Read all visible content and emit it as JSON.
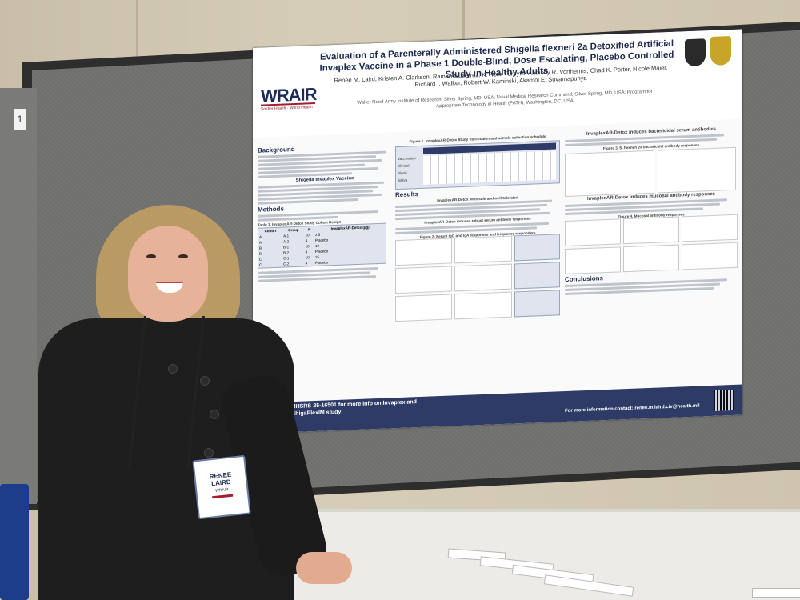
{
  "poster": {
    "title": "Evaluation of a Parenterally Administered Shigella flexneri 2a Detoxified Artificial Invaplex Vaccine in a Phase 1 Double-Blind, Dose Escalating, Placebo Controlled Study in Healthy Adults",
    "authors": "Renee M. Laird, Kristen A. Clarkson, Ramiro Gutierrez, K. Ross Turbyfill, Anthony R. Vortherms, Chad K. Porter, Nicole Maier, Richard I. Walker, Robert W. Kaminski, Akamol E. Suvarnapunya",
    "affiliation": "Walter Reed Army Institute of Research, Silver Spring, MD, USA; Naval Medical Research Command, Silver Spring, MD, USA; Program for Appropriate Technology in Health (PATH), Washington, DC, USA",
    "logo": "WRAIR",
    "logo_tagline": "Soldier Health · World Health",
    "sections": {
      "background": "Background",
      "invaplex_vaccine": "Shigella Invaplex Vaccine",
      "methods": "Methods",
      "table1": "Table 1. InvaplexAR-Detox Study Cohort Design",
      "figure1": "Figure 1. InvaplexAR-Detox Study Vaccination and sample collection schedule",
      "results": "Results",
      "safe": "InvaplexAR-Detox IM is safe and well-tolerated",
      "robust": "InvaplexAR-Detox induces robust serum antibody responses",
      "figure2": "Figure 2. Serum IgG and IgA responses and frequency responders",
      "bactericidal": "InvaplexAR-Detox induces bactericidal serum antibodies",
      "figure3": "Figure 3. S. flexneri 2a bactericidal antibody responses",
      "mucosal": "InvaplexAR-Detox induces mucosal antibody responses",
      "figure4": "Figure 4. Mucosal antibody responses",
      "conclusions": "Conclusions"
    },
    "schedule_rows": [
      "Vaccination",
      "Clinical",
      "Blood",
      "Saliva"
    ],
    "table_headers": [
      "Cohort",
      "Group",
      "N",
      "InvaplexAR-Detox (µg)"
    ],
    "table_rows": [
      [
        "A",
        "A-1",
        "10",
        "2.5"
      ],
      [
        "A",
        "A-2",
        "4",
        "Placebo"
      ],
      [
        "B",
        "B-1",
        "10",
        "10"
      ],
      [
        "B",
        "B-2",
        "4",
        "Placebo"
      ],
      [
        "C",
        "C-1",
        "10",
        "25"
      ],
      [
        "C",
        "C-2",
        "4",
        "Placebo"
      ]
    ],
    "footer_left": "See poster MHSRS-25-16501 for more info on Invaplex and the current ShigaPlexIM study!",
    "footer_right": "For more information contact: renee.m.laird.civ@health.mil"
  },
  "badge": {
    "name_line1": "RENEE",
    "name_line2": "LAIRD",
    "org": "WRAIR"
  },
  "board_tag": "1",
  "colors": {
    "poster_footer": "#2d3b66",
    "title_navy": "#1d2b4f",
    "wrair_red": "#a02030",
    "board_fabric": "#727270"
  }
}
